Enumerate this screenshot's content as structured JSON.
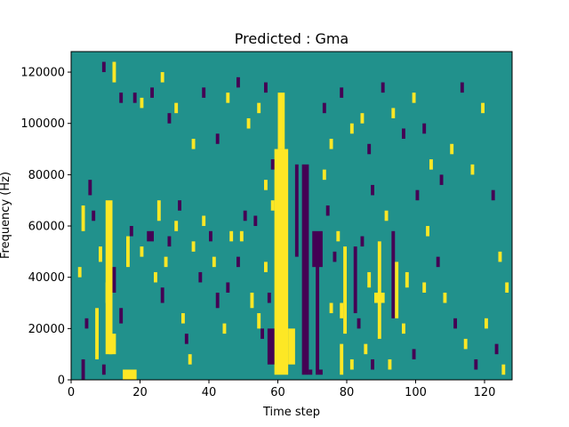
{
  "chart_data": {
    "type": "heatmap",
    "title": "Predicted : Gma",
    "xlabel": "Time step",
    "ylabel": "Frequency (Hz)",
    "xlim": [
      0,
      128
    ],
    "ylim": [
      0,
      128000
    ],
    "x_ticks": [
      0,
      20,
      40,
      60,
      80,
      100,
      120
    ],
    "y_ticks": [
      0,
      20000,
      40000,
      60000,
      80000,
      100000,
      120000
    ],
    "x_tick_labels": [
      "0",
      "20",
      "40",
      "60",
      "80",
      "100",
      "120"
    ],
    "y_tick_labels": [
      "0",
      "20000",
      "40000",
      "60000",
      "80000",
      "100000",
      "120000"
    ],
    "grid": false,
    "colormap": "viridis",
    "value_levels": [
      -1,
      0,
      1
    ],
    "colors": {
      "low": "#440154",
      "mid": "#21918c",
      "high": "#fde725"
    },
    "background_value": 0,
    "cell_width": 1,
    "cell_height": 2000,
    "cells_note": "each cell: [time_step_start, time_step_end, freq_start_hz, freq_end_hz, value]",
    "cells": [
      [
        59,
        63,
        2000,
        90000,
        1
      ],
      [
        60,
        62,
        90000,
        112000,
        1
      ],
      [
        10,
        12,
        10000,
        70000,
        1
      ],
      [
        11,
        13,
        10000,
        18000,
        1
      ],
      [
        15,
        19,
        0,
        4000,
        1
      ],
      [
        67,
        69,
        2000,
        84000,
        -1
      ],
      [
        70,
        73,
        44000,
        58000,
        -1
      ],
      [
        71,
        72,
        2000,
        56000,
        -1
      ],
      [
        63,
        65,
        6000,
        20000,
        1
      ],
      [
        57,
        59,
        6000,
        20000,
        -1
      ],
      [
        79,
        80,
        18000,
        52000,
        1
      ],
      [
        78,
        79,
        24000,
        30000,
        1
      ],
      [
        88,
        91,
        30000,
        34000,
        1
      ],
      [
        89,
        90,
        16000,
        54000,
        1
      ],
      [
        86,
        87,
        36000,
        42000,
        1
      ],
      [
        84,
        85,
        52000,
        56000,
        -1
      ],
      [
        82,
        83,
        26000,
        52000,
        -1
      ],
      [
        93,
        94,
        24000,
        58000,
        -1
      ],
      [
        94,
        95,
        24000,
        46000,
        1
      ],
      [
        97,
        98,
        36000,
        42000,
        1
      ],
      [
        69,
        70,
        2000,
        4000,
        -1
      ],
      [
        72,
        73,
        2000,
        4000,
        -1
      ],
      [
        78,
        79,
        2000,
        14000,
        1
      ],
      [
        65,
        66,
        48000,
        84000,
        -1
      ],
      [
        58,
        59,
        66000,
        70000,
        1
      ],
      [
        56,
        57,
        74000,
        78000,
        1
      ],
      [
        3,
        4,
        0,
        8000,
        -1
      ],
      [
        7,
        8,
        8000,
        28000,
        1
      ],
      [
        10,
        11,
        30000,
        38000,
        1
      ],
      [
        6,
        7,
        62000,
        66000,
        -1
      ],
      [
        5,
        6,
        72000,
        78000,
        -1
      ],
      [
        3,
        4,
        58000,
        68000,
        1
      ],
      [
        2,
        3,
        40000,
        44000,
        1
      ],
      [
        4,
        5,
        20000,
        24000,
        -1
      ],
      [
        9,
        10,
        2000,
        6000,
        -1
      ],
      [
        8,
        9,
        46000,
        52000,
        1
      ],
      [
        12,
        13,
        34000,
        44000,
        -1
      ],
      [
        14,
        15,
        22000,
        28000,
        -1
      ],
      [
        16,
        17,
        44000,
        56000,
        1
      ],
      [
        17,
        18,
        56000,
        60000,
        -1
      ],
      [
        20,
        21,
        48000,
        52000,
        1
      ],
      [
        22,
        24,
        54000,
        58000,
        -1
      ],
      [
        24,
        25,
        38000,
        42000,
        1
      ],
      [
        25,
        26,
        62000,
        70000,
        1
      ],
      [
        26,
        27,
        30000,
        36000,
        -1
      ],
      [
        27,
        28,
        44000,
        48000,
        1
      ],
      [
        28,
        29,
        52000,
        56000,
        -1
      ],
      [
        30,
        31,
        58000,
        62000,
        1
      ],
      [
        31,
        32,
        66000,
        70000,
        -1
      ],
      [
        32,
        33,
        22000,
        26000,
        1
      ],
      [
        33,
        34,
        14000,
        18000,
        -1
      ],
      [
        34,
        35,
        6000,
        10000,
        1
      ],
      [
        35,
        36,
        50000,
        54000,
        1
      ],
      [
        37,
        38,
        38000,
        42000,
        -1
      ],
      [
        38,
        39,
        60000,
        64000,
        1
      ],
      [
        40,
        41,
        54000,
        58000,
        -1
      ],
      [
        41,
        42,
        44000,
        48000,
        1
      ],
      [
        42,
        43,
        28000,
        34000,
        -1
      ],
      [
        44,
        45,
        18000,
        22000,
        1
      ],
      [
        45,
        46,
        34000,
        38000,
        -1
      ],
      [
        46,
        47,
        54000,
        58000,
        1
      ],
      [
        48,
        49,
        44000,
        48000,
        -1
      ],
      [
        49,
        50,
        54000,
        58000,
        1
      ],
      [
        50,
        51,
        62000,
        66000,
        -1
      ],
      [
        52,
        53,
        28000,
        34000,
        1
      ],
      [
        53,
        54,
        60000,
        64000,
        -1
      ],
      [
        54,
        55,
        20000,
        26000,
        1
      ],
      [
        55,
        56,
        16000,
        20000,
        -1
      ],
      [
        56,
        57,
        42000,
        46000,
        1
      ],
      [
        57,
        58,
        30000,
        34000,
        -1
      ],
      [
        58,
        59,
        82000,
        86000,
        -1
      ],
      [
        9,
        10,
        120000,
        124000,
        -1
      ],
      [
        12,
        13,
        116000,
        124000,
        1
      ],
      [
        14,
        15,
        108000,
        112000,
        -1
      ],
      [
        18,
        19,
        108000,
        112000,
        -1
      ],
      [
        20,
        21,
        106000,
        110000,
        1
      ],
      [
        23,
        24,
        110000,
        114000,
        -1
      ],
      [
        26,
        27,
        116000,
        120000,
        1
      ],
      [
        28,
        29,
        100000,
        104000,
        -1
      ],
      [
        30,
        31,
        104000,
        108000,
        1
      ],
      [
        35,
        36,
        90000,
        94000,
        1
      ],
      [
        38,
        39,
        110000,
        114000,
        -1
      ],
      [
        42,
        43,
        92000,
        96000,
        -1
      ],
      [
        45,
        46,
        108000,
        112000,
        1
      ],
      [
        48,
        49,
        114000,
        118000,
        -1
      ],
      [
        51,
        52,
        98000,
        102000,
        1
      ],
      [
        54,
        55,
        104000,
        108000,
        1
      ],
      [
        56,
        57,
        112000,
        116000,
        -1
      ],
      [
        73,
        74,
        104000,
        108000,
        -1
      ],
      [
        75,
        76,
        90000,
        94000,
        1
      ],
      [
        78,
        79,
        110000,
        114000,
        -1
      ],
      [
        81,
        82,
        96000,
        100000,
        1
      ],
      [
        84,
        85,
        100000,
        104000,
        1
      ],
      [
        86,
        87,
        88000,
        92000,
        -1
      ],
      [
        90,
        91,
        112000,
        116000,
        -1
      ],
      [
        93,
        94,
        102000,
        106000,
        1
      ],
      [
        96,
        97,
        94000,
        98000,
        -1
      ],
      [
        99,
        100,
        108000,
        112000,
        1
      ],
      [
        102,
        103,
        96000,
        100000,
        -1
      ],
      [
        104,
        105,
        82000,
        86000,
        1
      ],
      [
        107,
        108,
        76000,
        80000,
        -1
      ],
      [
        110,
        111,
        88000,
        92000,
        1
      ],
      [
        113,
        114,
        112000,
        116000,
        -1
      ],
      [
        116,
        117,
        80000,
        84000,
        1
      ],
      [
        119,
        120,
        104000,
        108000,
        1
      ],
      [
        122,
        123,
        70000,
        74000,
        -1
      ],
      [
        124,
        125,
        46000,
        50000,
        1
      ],
      [
        126,
        127,
        34000,
        38000,
        1
      ],
      [
        100,
        101,
        70000,
        74000,
        -1
      ],
      [
        103,
        104,
        56000,
        60000,
        1
      ],
      [
        106,
        107,
        44000,
        48000,
        -1
      ],
      [
        108,
        109,
        30000,
        34000,
        1
      ],
      [
        111,
        112,
        20000,
        24000,
        -1
      ],
      [
        114,
        115,
        12000,
        16000,
        1
      ],
      [
        117,
        118,
        4000,
        8000,
        -1
      ],
      [
        120,
        121,
        20000,
        24000,
        1
      ],
      [
        123,
        124,
        10000,
        14000,
        -1
      ],
      [
        125,
        126,
        2000,
        6000,
        1
      ],
      [
        96,
        97,
        18000,
        22000,
        1
      ],
      [
        99,
        100,
        8000,
        12000,
        -1
      ],
      [
        102,
        103,
        34000,
        38000,
        1
      ],
      [
        75,
        76,
        26000,
        30000,
        1
      ],
      [
        76,
        77,
        46000,
        50000,
        -1
      ],
      [
        74,
        75,
        64000,
        68000,
        -1
      ],
      [
        73,
        74,
        78000,
        82000,
        1
      ],
      [
        77,
        78,
        54000,
        58000,
        1
      ],
      [
        91,
        92,
        62000,
        66000,
        1
      ],
      [
        87,
        88,
        72000,
        76000,
        -1
      ],
      [
        85,
        86,
        10000,
        14000,
        1
      ],
      [
        83,
        84,
        20000,
        24000,
        -1
      ],
      [
        81,
        82,
        4000,
        8000,
        1
      ],
      [
        87,
        88,
        4000,
        8000,
        -1
      ],
      [
        92,
        93,
        4000,
        8000,
        1
      ]
    ]
  }
}
